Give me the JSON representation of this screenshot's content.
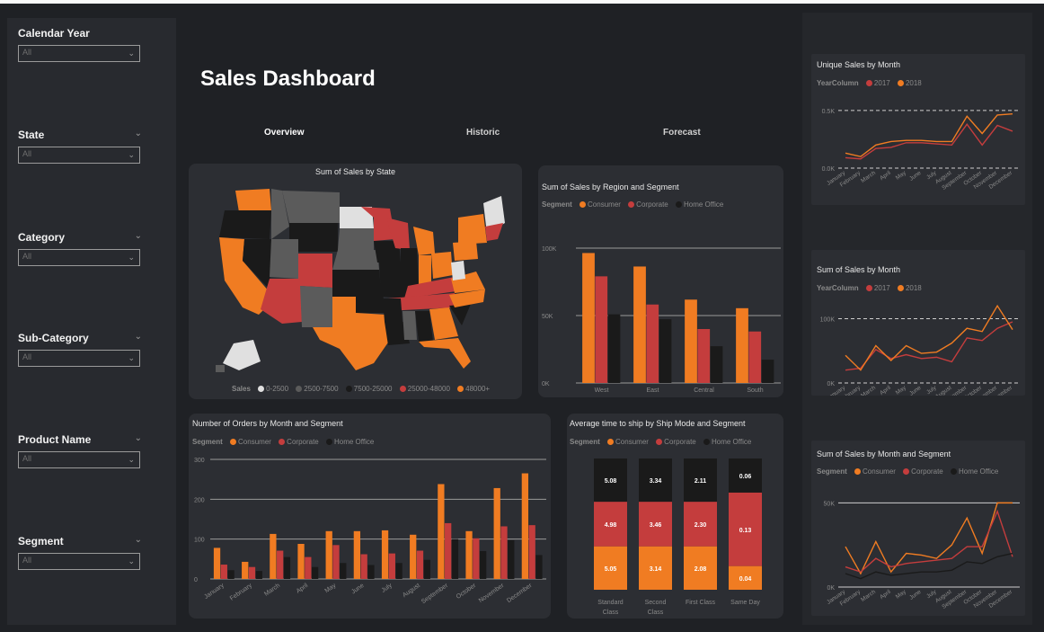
{
  "page_title": "Sales Dashboard",
  "tabs": [
    "Overview",
    "Historic",
    "Forecast"
  ],
  "colors": {
    "consumer": "#f07c22",
    "corporate": "#c43d3d",
    "home_office": "#1a1a1a"
  },
  "slicers": [
    {
      "label": "Calendar Year",
      "value": "All"
    },
    {
      "label": "State",
      "value": "All"
    },
    {
      "label": "Category",
      "value": "All"
    },
    {
      "label": "Sub-Category",
      "value": "All"
    },
    {
      "label": "Product Name",
      "value": "All"
    },
    {
      "label": "Segment",
      "value": "All"
    }
  ],
  "map": {
    "title": "Sum of Sales by State",
    "legend_title": "Sales",
    "legend": [
      {
        "label": "0-2500",
        "color": "#e0e0e0"
      },
      {
        "label": "2500-7500",
        "color": "#5b5b5b"
      },
      {
        "label": "7500-25000",
        "color": "#1a1a1a"
      },
      {
        "label": "25000-48000",
        "color": "#c43d3d"
      },
      {
        "label": "48000+",
        "color": "#f07c22"
      }
    ]
  },
  "segment_legend": {
    "title": "Segment",
    "items": [
      "Consumer",
      "Corporate",
      "Home Office"
    ]
  },
  "year_legend": {
    "title": "YearColumn",
    "items": [
      "2017",
      "2018"
    ]
  },
  "chart_data": [
    {
      "id": "region",
      "type": "bar",
      "title": "Sum of Sales by Region and Segment",
      "categories": [
        "West",
        "East",
        "Central",
        "South"
      ],
      "ticks": [
        "100K",
        "50K",
        "0K"
      ],
      "ylim": [
        0,
        110000
      ],
      "series": [
        {
          "name": "Consumer",
          "values": [
            106000,
            95000,
            68000,
            61000
          ]
        },
        {
          "name": "Corporate",
          "values": [
            87000,
            64000,
            44000,
            42000
          ]
        },
        {
          "name": "Home Office",
          "values": [
            56000,
            52000,
            30000,
            19000
          ]
        }
      ]
    },
    {
      "id": "orders",
      "type": "bar",
      "title": "Number of Orders by Month and Segment",
      "categories": [
        "January",
        "February",
        "March",
        "April",
        "May",
        "June",
        "July",
        "August",
        "September",
        "October",
        "November",
        "December"
      ],
      "ticks": [
        "300",
        "200",
        "100",
        "0"
      ],
      "ylim": [
        0,
        300
      ],
      "series": [
        {
          "name": "Consumer",
          "values": [
            78,
            43,
            113,
            88,
            120,
            120,
            122,
            111,
            238,
            120,
            228,
            265
          ]
        },
        {
          "name": "Corporate",
          "values": [
            36,
            30,
            71,
            55,
            85,
            62,
            64,
            71,
            140,
            102,
            132,
            135
          ]
        },
        {
          "name": "Home Office",
          "values": [
            22,
            20,
            55,
            30,
            40,
            35,
            40,
            48,
            100,
            70,
            97,
            60
          ]
        }
      ]
    },
    {
      "id": "ship",
      "type": "bar",
      "stacked": true,
      "title": "Average time to ship by Ship Mode and Segment",
      "categories": [
        "Standard Class",
        "Second Class",
        "First Class",
        "Same Day"
      ],
      "series": [
        {
          "name": "Consumer",
          "values": [
            5.05,
            3.14,
            2.08,
            0.04
          ]
        },
        {
          "name": "Corporate",
          "values": [
            4.98,
            3.46,
            2.3,
            0.13
          ]
        },
        {
          "name": "Home Office",
          "values": [
            5.08,
            3.34,
            2.11,
            0.06
          ]
        }
      ]
    },
    {
      "id": "unique_month",
      "type": "line",
      "title": "Unique Sales by Month",
      "x": [
        "January",
        "February",
        "March",
        "April",
        "May",
        "June",
        "July",
        "August",
        "September",
        "October",
        "November",
        "December"
      ],
      "ticks": [
        "0.5K",
        "0.0K"
      ],
      "ylim": [
        0,
        0.6
      ],
      "series": [
        {
          "name": "2017",
          "values": [
            0.09,
            0.08,
            0.17,
            0.18,
            0.22,
            0.22,
            0.21,
            0.2,
            0.38,
            0.2,
            0.37,
            0.32
          ]
        },
        {
          "name": "2018",
          "values": [
            0.13,
            0.1,
            0.2,
            0.23,
            0.24,
            0.24,
            0.23,
            0.23,
            0.45,
            0.3,
            0.46,
            0.47
          ]
        }
      ]
    },
    {
      "id": "sales_month",
      "type": "line",
      "title": "Sum of Sales by Month",
      "x": [
        "January",
        "February",
        "March",
        "April",
        "May",
        "June",
        "July",
        "August",
        "September",
        "October",
        "November",
        "December"
      ],
      "ticks": [
        "100K",
        "0K"
      ],
      "ylim": [
        0,
        130000
      ],
      "series": [
        {
          "name": "2017",
          "values": [
            20000,
            23000,
            52000,
            38000,
            44000,
            38000,
            40000,
            33000,
            70000,
            66000,
            85000,
            95000
          ]
        },
        {
          "name": "2018",
          "values": [
            43000,
            20000,
            58000,
            35000,
            58000,
            46000,
            48000,
            62000,
            85000,
            80000,
            120000,
            83000
          ]
        }
      ]
    },
    {
      "id": "sales_month_segment",
      "type": "line",
      "title": "Sum of Sales by Month and Segment",
      "x": [
        "January",
        "February",
        "March",
        "April",
        "May",
        "June",
        "July",
        "August",
        "September",
        "October",
        "November",
        "December"
      ],
      "ticks": [
        "50K",
        "0K"
      ],
      "ylim": [
        0,
        55000
      ],
      "series": [
        {
          "name": "Consumer",
          "values": [
            24000,
            8000,
            27000,
            9000,
            20000,
            19000,
            17000,
            25000,
            41000,
            20000,
            50000,
            50000
          ]
        },
        {
          "name": "Corporate",
          "values": [
            12000,
            9000,
            17000,
            12000,
            14000,
            15000,
            16000,
            17000,
            24000,
            24000,
            45000,
            18000
          ]
        },
        {
          "name": "Home Office",
          "values": [
            8000,
            5000,
            9000,
            7000,
            8000,
            9000,
            9000,
            10000,
            15000,
            14000,
            18000,
            20000
          ]
        }
      ]
    }
  ]
}
